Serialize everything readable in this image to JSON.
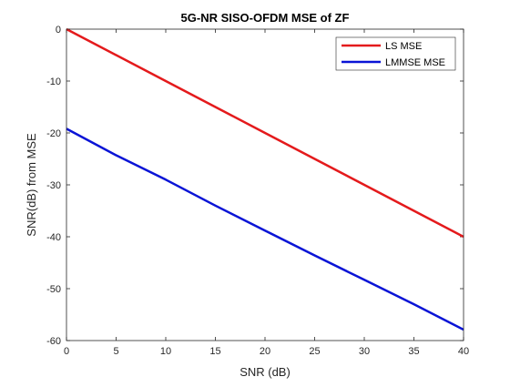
{
  "chart_data": {
    "type": "line",
    "title": "5G-NR SISO-OFDM MSE of ZF",
    "xlabel": "SNR (dB)",
    "ylabel": "SNR(dB) from MSE",
    "xlim": [
      0,
      40
    ],
    "ylim": [
      -60,
      0
    ],
    "xticks": [
      0,
      5,
      10,
      15,
      20,
      25,
      30,
      35,
      40
    ],
    "yticks": [
      0,
      -10,
      -20,
      -30,
      -40,
      -50,
      -60
    ],
    "grid": false,
    "legend_position": "top-right",
    "x": [
      0,
      5,
      10,
      15,
      20,
      25,
      30,
      35,
      40
    ],
    "series": [
      {
        "name": "LS MSE",
        "color": "#e41a1c",
        "values": [
          0,
          -5,
          -10,
          -15,
          -20,
          -25,
          -30,
          -35,
          -40
        ]
      },
      {
        "name": "LMMSE MSE",
        "color": "#0a14d6",
        "values": [
          -19.2,
          -24.3,
          -29.0,
          -34.0,
          -38.8,
          -43.6,
          -48.3,
          -53.0,
          -57.9
        ]
      }
    ]
  }
}
